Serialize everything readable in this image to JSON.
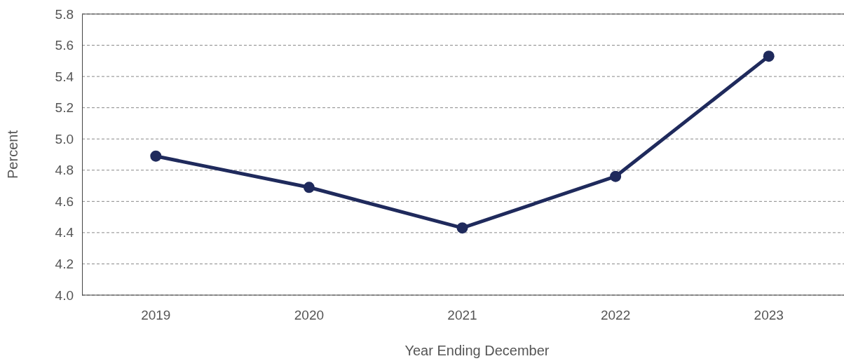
{
  "chart_data": {
    "type": "line",
    "xlabel": "Year Ending December",
    "ylabel": "Percent",
    "categories": [
      "2019",
      "2020",
      "2021",
      "2022",
      "2023"
    ],
    "series": [
      {
        "color": "#1f2a5c",
        "values": [
          4.89,
          4.69,
          4.43,
          4.76,
          5.53
        ]
      }
    ],
    "ylim": [
      4.0,
      5.8
    ],
    "yticks": [
      {
        "value": 4.0,
        "label": "4.0"
      },
      {
        "value": 4.2,
        "label": "4.2"
      },
      {
        "value": 4.4,
        "label": "4.4"
      },
      {
        "value": 4.6,
        "label": "4.6"
      },
      {
        "value": 4.8,
        "label": "4.8"
      },
      {
        "value": 5.0,
        "label": "5.0"
      },
      {
        "value": 5.2,
        "label": "5.2"
      },
      {
        "value": 5.4,
        "label": "5.4"
      },
      {
        "value": 5.6,
        "label": "5.6"
      },
      {
        "value": 5.8,
        "label": "5.8"
      }
    ],
    "grid": "y",
    "marker": "circle",
    "line_style": "solid"
  }
}
